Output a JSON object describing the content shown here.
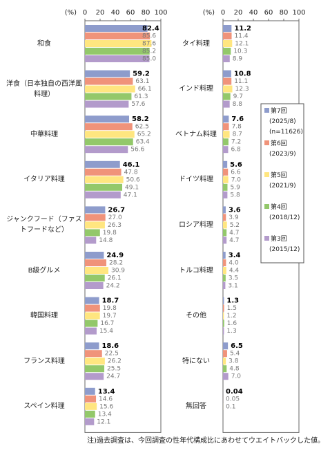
{
  "chart_data": {
    "type": "bar",
    "x_label": "(%)",
    "xlim": [
      0,
      100
    ],
    "xticks": [
      0,
      20,
      40,
      60,
      80,
      100
    ],
    "categories": [
      "和食",
      "洋食（日本独自の西洋風料理）",
      "中華料理",
      "イタリア料理",
      "ジャンクフード（ファストフードなど）",
      "B級グルメ",
      "韓国料理",
      "フランス料理",
      "スペイン料理",
      "タイ料理",
      "インド料理",
      "ベトナム料理",
      "ドイツ料理",
      "ロシア料理",
      "トルコ料理",
      "その他",
      "特にない",
      "無回答"
    ],
    "series": [
      {
        "name": "第7回 (2025/8) (n=11626)",
        "color": "#8e9ccc",
        "values": [
          82.4,
          59.2,
          58.2,
          46.1,
          26.7,
          24.9,
          18.7,
          18.6,
          13.4,
          11.2,
          10.8,
          7.6,
          5.6,
          3.6,
          3.4,
          1.3,
          6.5,
          0.04
        ],
        "value_labels": [
          "82.4",
          "59.2",
          "58.2",
          "46.1",
          "26.7",
          "24.9",
          "18.7",
          "18.6",
          "13.4",
          "11.2",
          "10.8",
          "7.6",
          "5.6",
          "3.6",
          "3.4",
          "1.3",
          "6.5",
          "0.04"
        ]
      },
      {
        "name": "第6回 (2023/9)",
        "color": "#f0937a",
        "values": [
          85.6,
          63.1,
          62.5,
          47.8,
          27.0,
          28.2,
          19.8,
          22.5,
          14.6,
          11.4,
          11.1,
          7.8,
          6.6,
          3.9,
          4.0,
          1.5,
          5.4,
          0.05
        ],
        "value_labels": [
          "85.6",
          "63.1",
          "62.5",
          "47.8",
          "27.0",
          "28.2",
          "19.8",
          "22.5",
          "14.6",
          "11.4",
          "11.1",
          "7.8",
          "6.6",
          "3.9",
          "4.0",
          "1.5",
          "5.4",
          "0.05"
        ]
      },
      {
        "name": "第5回 (2021/9)",
        "color": "#ffe680",
        "values": [
          87.6,
          66.1,
          65.2,
          50.6,
          26.3,
          30.9,
          19.7,
          26.2,
          15.6,
          12.1,
          12.3,
          8.7,
          7.0,
          5.2,
          4.4,
          1.2,
          3.8,
          0.1
        ],
        "value_labels": [
          "87.6",
          "66.1",
          "65.2",
          "50.6",
          "26.3",
          "30.9",
          "19.7",
          "26.2",
          "15.6",
          "12.1",
          "12.3",
          "8.7",
          "7.0",
          "5.2",
          "4.4",
          "1.2",
          "3.8",
          "0.1"
        ]
      },
      {
        "name": "第4回 (2018/12)",
        "color": "#93c86a",
        "values": [
          85.2,
          61.3,
          63.4,
          49.1,
          19.8,
          26.1,
          16.7,
          25.5,
          13.4,
          10.3,
          9.7,
          7.2,
          5.9,
          4.7,
          3.5,
          1.6,
          4.8,
          null
        ],
        "value_labels": [
          "85.2",
          "61.3",
          "63.4",
          "49.1",
          "19.8",
          "26.1",
          "16.7",
          "25.5",
          "13.4",
          "10.3",
          "9.7",
          "7.2",
          "5.9",
          "4.7",
          "3.5",
          "1.6",
          "4.8",
          null
        ]
      },
      {
        "name": "第3回 (2015/12)",
        "color": "#b39bcb",
        "values": [
          85.0,
          57.6,
          56.6,
          47.1,
          14.8,
          24.2,
          15.4,
          24.7,
          12.1,
          8.9,
          8.8,
          6.8,
          5.8,
          4.7,
          3.1,
          1.3,
          7.0,
          null
        ],
        "value_labels": [
          "85.0",
          "57.6",
          "56.6",
          "47.1",
          "14.8",
          "24.2",
          "15.4",
          "24.7",
          "12.1",
          "8.9",
          "8.8",
          "6.8",
          "5.8",
          "4.7",
          "3.1",
          "1.3",
          "7.0",
          null
        ]
      }
    ],
    "note": "注)過去調査は、今回調査の性年代構成比にあわせてウエイトバックした値。"
  }
}
